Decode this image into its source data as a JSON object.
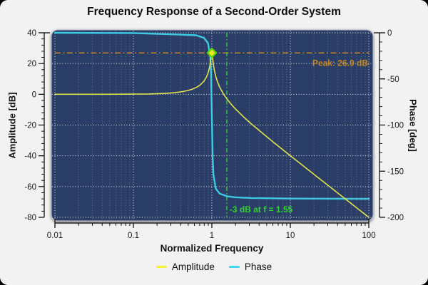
{
  "chart_data": {
    "type": "line",
    "title": "Frequency Response of a Second-Order System",
    "x_axis": {
      "label": "Normalized Frequency",
      "scale": "log",
      "range_log10": [
        -2,
        2
      ],
      "ticks_log10": [
        -2,
        -1,
        0,
        1,
        2
      ],
      "tick_labels": [
        "0.01",
        "0.1",
        "1",
        "10",
        "100"
      ]
    },
    "y_left": {
      "label": "Amplitude [dB]",
      "range": [
        -80,
        40
      ],
      "ticks": [
        40,
        20,
        0,
        -20,
        -40,
        -60,
        -80
      ],
      "tick_labels": [
        "40",
        "20",
        "0",
        "-20",
        "-40",
        "-60",
        "-80"
      ],
      "minor_step": 4
    },
    "y_right": {
      "label": "Phase [deg]",
      "range": [
        -200,
        0
      ],
      "ticks": [
        0,
        -50,
        -100,
        -150,
        -200
      ],
      "tick_labels": [
        "0",
        "-50",
        "-100",
        "-150",
        "-200"
      ],
      "minor_step": 10
    },
    "series": [
      {
        "name": "Amplitude",
        "axis": "left",
        "color": "#e2e24b",
        "width": 1.6,
        "points": [
          [
            -2,
            0
          ],
          [
            -1.6,
            0
          ],
          [
            -1.3,
            0.02
          ],
          [
            -1,
            0.09
          ],
          [
            -0.8,
            0.22
          ],
          [
            -0.6,
            0.57
          ],
          [
            -0.5,
            0.92
          ],
          [
            -0.4,
            1.5
          ],
          [
            -0.3,
            2.5
          ],
          [
            -0.25,
            3.3
          ],
          [
            -0.2,
            4.4
          ],
          [
            -0.15,
            6.0
          ],
          [
            -0.1,
            8.6
          ],
          [
            -0.07,
            11.1
          ],
          [
            -0.05,
            13.6
          ],
          [
            -0.03,
            17.3
          ],
          [
            -0.02,
            20.2
          ],
          [
            -0.01,
            24.0
          ],
          [
            0,
            26.9
          ],
          [
            0.01,
            23.6
          ],
          [
            0.02,
            19.4
          ],
          [
            0.03,
            16.2
          ],
          [
            0.05,
            11.6
          ],
          [
            0.07,
            8.3
          ],
          [
            0.1,
            4.6
          ],
          [
            0.15,
            0.0
          ],
          [
            0.19,
            -2.9
          ],
          [
            0.25,
            -6.7
          ],
          [
            0.3,
            -9.5
          ],
          [
            0.4,
            -14.5
          ],
          [
            0.5,
            -19.1
          ],
          [
            0.6,
            -23.4
          ],
          [
            0.7,
            -27.6
          ],
          [
            0.8,
            -31.8
          ],
          [
            0.9,
            -35.9
          ],
          [
            1.0,
            -39.9
          ],
          [
            1.2,
            -48.0
          ],
          [
            1.4,
            -56.0
          ],
          [
            1.6,
            -64.0
          ],
          [
            1.8,
            -72.0
          ],
          [
            2.0,
            -80.0
          ]
        ]
      },
      {
        "name": "Phase",
        "axis": "right",
        "color": "#3dcbe4",
        "width": 2.4,
        "points": [
          [
            -2,
            0
          ],
          [
            -1,
            -0.3
          ],
          [
            -0.5,
            -1.7
          ],
          [
            -0.2,
            -2.7
          ],
          [
            -0.1,
            -5.5
          ],
          [
            -0.05,
            -11.1
          ],
          [
            -0.02,
            -26.1
          ],
          [
            -0.01,
            -44.2
          ],
          [
            0,
            -90
          ],
          [
            0.01,
            -135.5
          ],
          [
            0.02,
            -153.8
          ],
          [
            0.05,
            -168.9
          ],
          [
            0.1,
            -174.4
          ],
          [
            0.2,
            -177.3
          ],
          [
            0.3,
            -178.3
          ],
          [
            0.5,
            -179.1
          ],
          [
            1,
            -179.7
          ],
          [
            2,
            -180
          ]
        ]
      }
    ],
    "annotations": {
      "peak_line": {
        "type": "hline",
        "value_db": 26.9,
        "color": "#d79021",
        "label": "Peak: 26.9 dB",
        "label_color": "#c8871c"
      },
      "bandwidth_line": {
        "type": "vline",
        "freq": 1.55,
        "color": "#2fd42f",
        "label": "-3 dB at f = 1.55",
        "label_color": "#2fd42f"
      },
      "peak_marker": {
        "freq": 1.0,
        "value_db": 26.9,
        "shape": "diamond",
        "fill": "#ffe12b",
        "stroke": "#5bdc00"
      }
    },
    "legend": [
      {
        "label": "Amplitude",
        "color": "#f2f23a"
      },
      {
        "label": "Phase",
        "color": "#45d8ec"
      }
    ],
    "style": {
      "plot_bg": "#2b3e66",
      "grid_major": "#ffffff",
      "grid_minor": "#8b96ad",
      "panel_border": "#b9c0cd",
      "axis_color": "#000000",
      "tick_label_color": "#1a1a1a",
      "outer_bg": "#f2f2f2"
    }
  }
}
